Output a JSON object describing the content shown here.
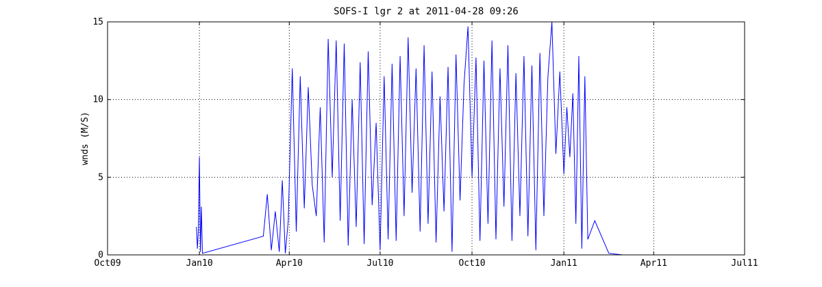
{
  "chart_data": {
    "type": "line",
    "title": "SOFS-I lgr 2 at 2011-04-28 09:26",
    "xlabel": "",
    "ylabel": "wnds (M/S)",
    "xlim": [
      "2009-10-01",
      "2011-07-01"
    ],
    "ylim": [
      0,
      15
    ],
    "xticks": [
      {
        "date": "2009-10-01",
        "label": "Oct09"
      },
      {
        "date": "2010-01-01",
        "label": "Jan10"
      },
      {
        "date": "2010-04-01",
        "label": "Apr10"
      },
      {
        "date": "2010-07-01",
        "label": "Jul10"
      },
      {
        "date": "2010-10-01",
        "label": "Oct10"
      },
      {
        "date": "2011-01-01",
        "label": "Jan11"
      },
      {
        "date": "2011-04-01",
        "label": "Apr11"
      },
      {
        "date": "2011-07-01",
        "label": "Jul11"
      }
    ],
    "yticks": [
      0,
      5,
      10,
      15
    ],
    "grid": true,
    "line_color": "#0000ff",
    "series": [
      {
        "x": [
          "2009-12-29",
          "2009-12-30",
          "2009-12-31",
          "2010-01-01",
          "2010-01-02",
          "2010-01-03",
          "2010-01-04",
          "2010-03-06",
          "2010-03-10",
          "2010-03-14",
          "2010-03-18",
          "2010-03-22",
          "2010-03-25",
          "2010-03-28",
          "2010-03-31",
          "2010-04-04",
          "2010-04-08",
          "2010-04-12",
          "2010-04-16",
          "2010-04-20",
          "2010-04-24",
          "2010-04-28",
          "2010-05-02",
          "2010-05-06",
          "2010-05-10",
          "2010-05-14",
          "2010-05-18",
          "2010-05-22",
          "2010-05-26",
          "2010-05-30",
          "2010-06-03",
          "2010-06-07",
          "2010-06-11",
          "2010-06-15",
          "2010-06-19",
          "2010-06-23",
          "2010-06-27",
          "2010-07-01",
          "2010-07-05",
          "2010-07-09",
          "2010-07-13",
          "2010-07-17",
          "2010-07-21",
          "2010-07-25",
          "2010-07-29",
          "2010-08-02",
          "2010-08-06",
          "2010-08-10",
          "2010-08-14",
          "2010-08-18",
          "2010-08-22",
          "2010-08-26",
          "2010-08-30",
          "2010-09-03",
          "2010-09-07",
          "2010-09-11",
          "2010-09-15",
          "2010-09-19",
          "2010-09-23",
          "2010-09-27",
          "2010-10-01",
          "2010-10-05",
          "2010-10-09",
          "2010-10-13",
          "2010-10-17",
          "2010-10-21",
          "2010-10-25",
          "2010-10-29",
          "2010-11-02",
          "2010-11-06",
          "2010-11-10",
          "2010-11-14",
          "2010-11-18",
          "2010-11-22",
          "2010-11-26",
          "2010-11-30",
          "2010-12-04",
          "2010-12-08",
          "2010-12-12",
          "2010-12-16",
          "2010-12-20",
          "2010-12-24",
          "2010-12-28",
          "2011-01-01",
          "2011-01-04",
          "2011-01-07",
          "2011-01-10",
          "2011-01-13",
          "2011-01-16",
          "2011-01-19",
          "2011-01-22",
          "2011-01-25",
          "2011-02-01",
          "2011-02-15",
          "2011-03-01",
          "2011-04-01",
          "2011-04-28"
        ],
        "y": [
          1.8,
          0.4,
          1.6,
          6.3,
          0.2,
          3.1,
          0.1,
          1.2,
          3.9,
          0.3,
          2.8,
          0.2,
          4.8,
          0.1,
          2.2,
          12.0,
          1.5,
          11.5,
          3.0,
          10.8,
          4.5,
          2.5,
          9.5,
          0.8,
          13.9,
          5.0,
          13.8,
          2.2,
          13.6,
          0.6,
          10.0,
          1.8,
          12.4,
          0.7,
          13.1,
          3.2,
          8.5,
          0.3,
          11.5,
          1.0,
          12.3,
          0.9,
          12.8,
          2.5,
          14.0,
          4.0,
          12.0,
          1.5,
          13.5,
          2.0,
          11.8,
          0.8,
          10.2,
          2.8,
          12.1,
          0.2,
          12.9,
          3.5,
          11.0,
          14.7,
          5.0,
          12.7,
          0.9,
          12.5,
          2.0,
          13.8,
          1.0,
          12.0,
          3.1,
          13.5,
          0.9,
          11.7,
          2.5,
          12.8,
          1.2,
          12.2,
          0.3,
          13.0,
          2.5,
          11.4,
          15.0,
          6.5,
          11.8,
          5.2,
          9.5,
          6.3,
          10.4,
          2.0,
          12.8,
          0.4,
          11.5,
          1.0,
          2.2,
          0.1,
          0.0,
          0.0,
          0.0
        ]
      }
    ]
  }
}
